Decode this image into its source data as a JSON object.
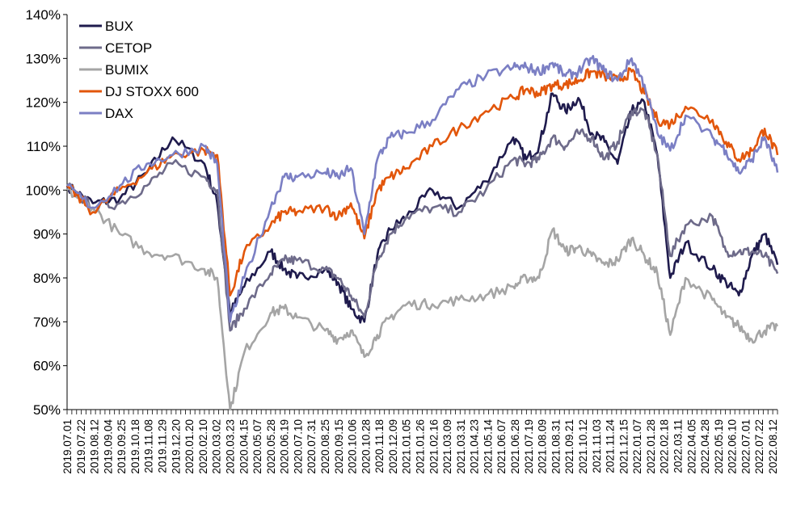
{
  "chart_data": {
    "type": "line",
    "ylim": [
      50,
      140
    ],
    "yticks": [
      50,
      60,
      70,
      80,
      90,
      100,
      110,
      120,
      130,
      140
    ],
    "ytick_labels": [
      "50%",
      "60%",
      "70%",
      "80%",
      "90%",
      "100%",
      "110%",
      "120%",
      "130%",
      "140%"
    ],
    "grid": false,
    "legend_position": "top-left",
    "xtick_labels": [
      "2019.07.01",
      "2019.07.22",
      "2019.08.12",
      "2019.09.04",
      "2019.09.25",
      "2019.10.18",
      "2019.11.08",
      "2019.11.29",
      "2019.12.20",
      "2020.01.20",
      "2020.02.10",
      "2020.03.02",
      "2020.03.23",
      "2020.04.15",
      "2020.05.07",
      "2020.05.28",
      "2020.06.19",
      "2020.07.10",
      "2020.07.31",
      "2020.08.25",
      "2020.09.15",
      "2020.10.06",
      "2020.10.28",
      "2020.11.18",
      "2020.12.09",
      "2021.01.05",
      "2021.01.26",
      "2021.02.16",
      "2021.03.09",
      "2021.03.31",
      "2021.04.23",
      "2021.05.14",
      "2021.06.07",
      "2021.06.28",
      "2021.07.19",
      "2021.08.09",
      "2021.08.31",
      "2021.09.21",
      "2021.10.12",
      "2021.11.03",
      "2021.11.24",
      "2021.12.15",
      "2022.01.07",
      "2022.01.28",
      "2022.02.18",
      "2022.03.11",
      "2022.04.05",
      "2022.04.28",
      "2022.05.19",
      "2022.06.10",
      "2022.07.01",
      "2022.07.22",
      "2022.08.12"
    ],
    "x": [
      "2019.07.01",
      "2019.08.12",
      "2019.09.25",
      "2019.11.08",
      "2019.12.20",
      "2020.02.10",
      "2020.03.02",
      "2020.03.23",
      "2020.04.15",
      "2020.05.28",
      "2020.06.19",
      "2020.07.10",
      "2020.08.25",
      "2020.09.15",
      "2020.10.06",
      "2020.10.28",
      "2020.11.18",
      "2020.12.09",
      "2021.01.05",
      "2021.02.16",
      "2021.03.31",
      "2021.05.14",
      "2021.06.28",
      "2021.07.19",
      "2021.08.09",
      "2021.08.31",
      "2021.09.21",
      "2021.10.12",
      "2021.11.03",
      "2021.11.24",
      "2021.12.15",
      "2022.01.07",
      "2022.01.28",
      "2022.02.18",
      "2022.03.11",
      "2022.04.05",
      "2022.05.19",
      "2022.06.10",
      "2022.07.01",
      "2022.07.22",
      "2022.08.12",
      "2022.09.02"
    ],
    "series": [
      {
        "name": "BUX",
        "color": "#1f1b4d",
        "values": [
          101,
          97,
          98,
          104,
          112,
          106,
          97,
          72,
          78,
          86,
          82,
          80,
          82,
          79,
          73,
          70,
          85,
          91,
          94,
          100,
          96,
          102,
          112,
          107,
          110,
          122,
          118,
          121,
          113,
          111,
          106,
          118,
          120,
          108,
          80,
          88,
          82,
          79,
          76,
          85,
          90,
          83
        ]
      },
      {
        "name": "CETOP",
        "color": "#6e6b8a",
        "values": [
          101,
          96,
          97,
          101,
          106,
          103,
          100,
          68,
          73,
          81,
          84,
          84,
          82,
          80,
          76,
          71,
          84,
          90,
          94,
          96,
          95,
          100,
          107,
          106,
          107,
          112,
          110,
          113,
          112,
          107,
          111,
          118,
          118,
          108,
          85,
          92,
          94,
          86,
          86,
          86,
          85,
          81
        ]
      },
      {
        "name": "BUMIX",
        "color": "#a5a5a5",
        "values": [
          100,
          96,
          90,
          86,
          85,
          82,
          80,
          50,
          63,
          72,
          73,
          71,
          68,
          66,
          68,
          62,
          67,
          71,
          74,
          74,
          75,
          76,
          78,
          80,
          80,
          91,
          86,
          87,
          85,
          83,
          84,
          89,
          85,
          81,
          67,
          80,
          75,
          71,
          69,
          66,
          68,
          69
        ]
      },
      {
        "name": "DJ STOXX 600",
        "color": "#e2560b",
        "values": [
          101,
          95,
          100,
          104,
          108,
          109,
          108,
          76,
          86,
          92,
          95,
          95,
          96,
          94,
          97,
          89,
          100,
          103,
          105,
          110,
          114,
          118,
          121,
          123,
          122,
          124,
          124,
          125,
          127,
          126,
          125,
          127,
          122,
          116,
          115,
          119,
          116,
          111,
          107,
          109,
          114,
          108
        ]
      },
      {
        "name": "DAX",
        "color": "#7b7fc4",
        "values": [
          101,
          96,
          101,
          106,
          108,
          110,
          106,
          70,
          80,
          96,
          103,
          103,
          104,
          103,
          105,
          90,
          107,
          112,
          113,
          116,
          123,
          126,
          128,
          128,
          127,
          129,
          126,
          127,
          130,
          127,
          125,
          130,
          124,
          113,
          109,
          117,
          112,
          109,
          104,
          107,
          112,
          104
        ]
      }
    ]
  }
}
